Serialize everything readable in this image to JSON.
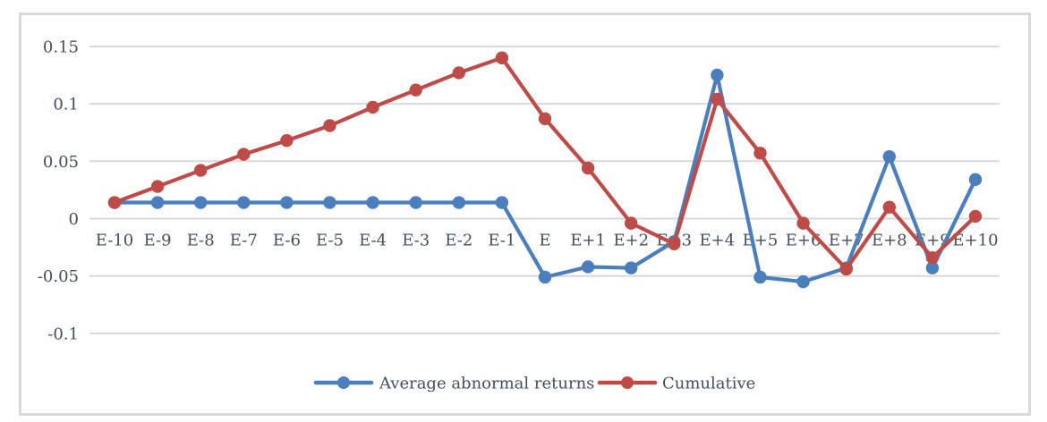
{
  "chart_data": {
    "type": "line",
    "title": "",
    "xlabel": "",
    "ylabel": "",
    "categories": [
      "E-10",
      "E-9",
      "E-8",
      "E-7",
      "E-6",
      "E-5",
      "E-4",
      "E-3",
      "E-2",
      "E-1",
      "E",
      "E+1",
      "E+2",
      "E+3",
      "E+4",
      "E+5",
      "E+6",
      "E+7",
      "E+8",
      "E+9",
      "E+10"
    ],
    "series": [
      {
        "name": "Average abnormal returns",
        "color": "#4A7EBD",
        "values": [
          0.014,
          0.014,
          0.014,
          0.014,
          0.014,
          0.014,
          0.014,
          0.014,
          0.014,
          0.014,
          -0.051,
          -0.042,
          -0.043,
          -0.02,
          0.125,
          -0.051,
          -0.055,
          -0.043,
          0.054,
          -0.043,
          0.034
        ]
      },
      {
        "name": "Cumulative",
        "color": "#BE4B48",
        "values": [
          0.014,
          0.028,
          0.042,
          0.056,
          0.068,
          0.081,
          0.097,
          0.112,
          0.127,
          0.14,
          0.087,
          0.044,
          -0.004,
          -0.022,
          0.104,
          0.057,
          -0.004,
          -0.044,
          0.01,
          -0.034,
          0.002
        ]
      }
    ],
    "y_axis": {
      "ticks": [
        {
          "label": "0.15",
          "value": 0.15
        },
        {
          "label": "0.1",
          "value": 0.1
        },
        {
          "label": "0.05",
          "value": 0.05
        },
        {
          "label": "0",
          "value": 0
        },
        {
          "label": "-0.05",
          "value": -0.05
        },
        {
          "label": "-0.1",
          "value": -0.1
        }
      ],
      "range": [
        -0.13,
        0.18
      ]
    },
    "grid": "horizontal-only",
    "legend_position": "bottom-center",
    "styles": {
      "grid_color": "#D9D9D9",
      "frame_color": "#D9D9D9",
      "text_color": "#454E5E",
      "background": "#FFFFFF"
    }
  }
}
